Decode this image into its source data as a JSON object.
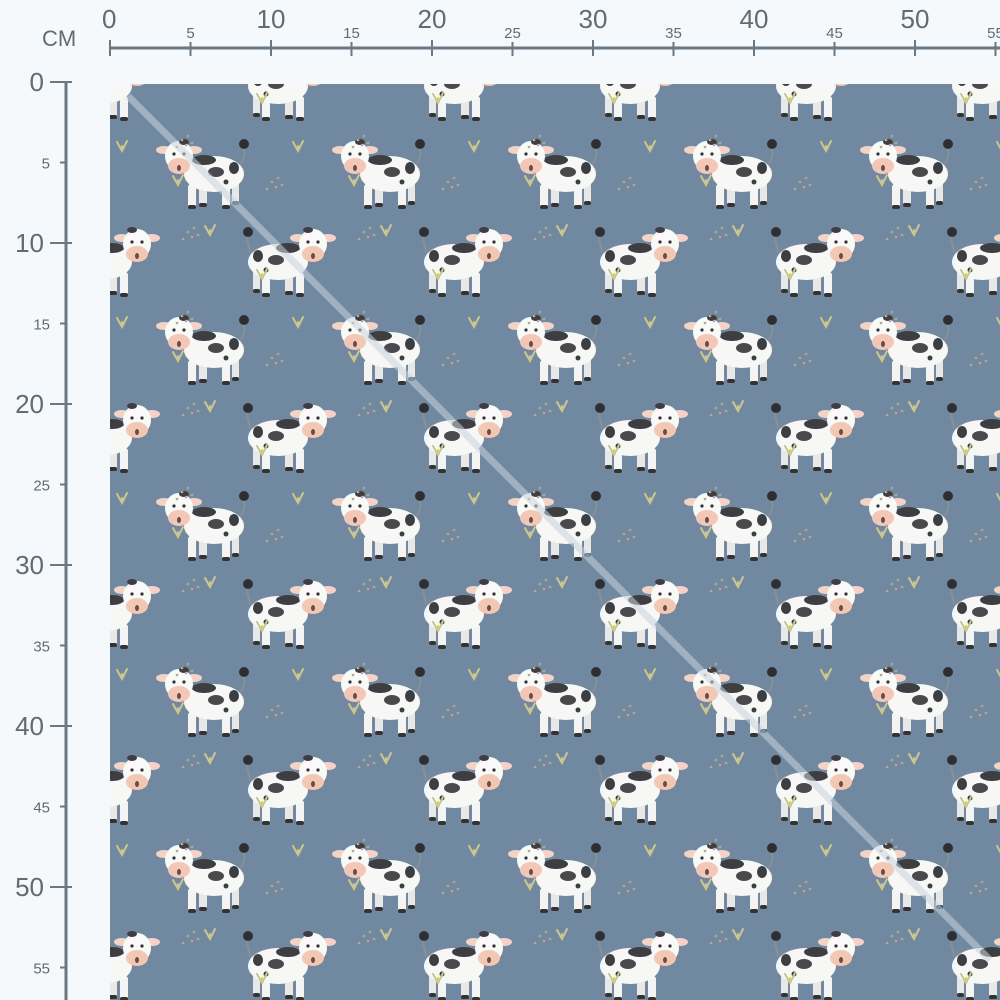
{
  "ruler": {
    "unit_label": "CM",
    "top_ticks": [
      0,
      5,
      10,
      15,
      20,
      25,
      30,
      35,
      40,
      45,
      50,
      55
    ],
    "left_ticks": [
      0,
      5,
      10,
      15,
      20,
      25,
      30,
      35,
      40,
      45,
      50,
      55
    ],
    "color": "#6b7883"
  },
  "fabric": {
    "background_color": "#7089a1",
    "motif": "cow-icon",
    "accent_colors": {
      "sprout": "#c9c88a",
      "muzzle": "#f2c7b6",
      "spots": "#3e3e42"
    }
  }
}
